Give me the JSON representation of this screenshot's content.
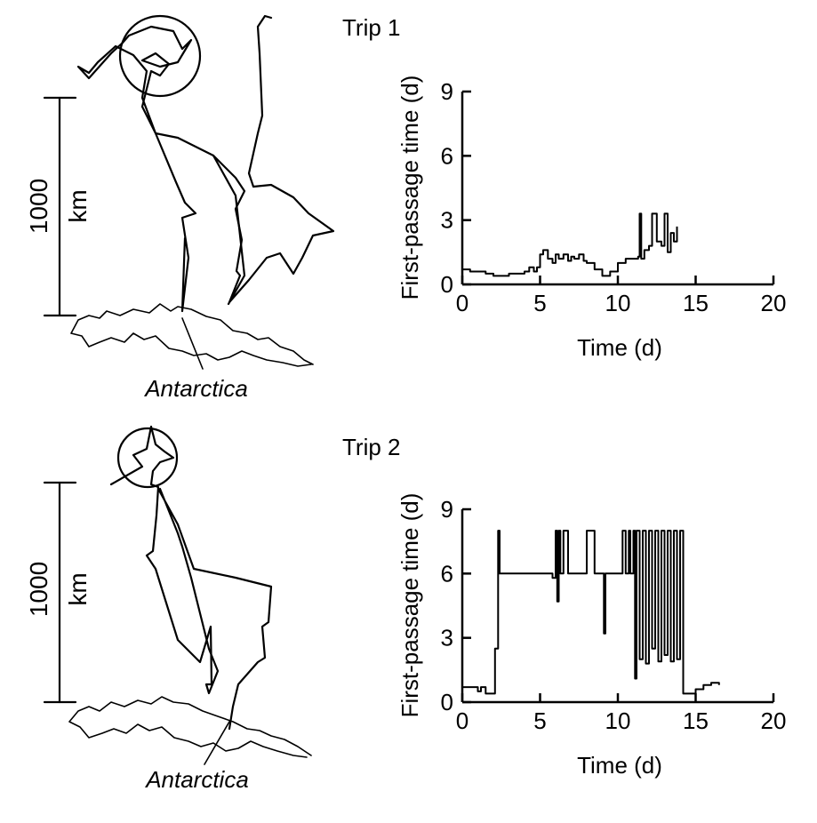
{
  "panels": [
    {
      "trip_title": "Trip 1",
      "scale_value": "1000",
      "scale_unit": "km",
      "map_label": "Antarctica"
    },
    {
      "trip_title": "Trip 2",
      "scale_value": "1000",
      "scale_unit": "km",
      "map_label": "Antarctica"
    }
  ],
  "chart_data": [
    {
      "type": "line",
      "xlabel": "Time (d)",
      "ylabel": "First-passage time (d)",
      "xlim": [
        0,
        20
      ],
      "ylim": [
        0,
        9
      ],
      "xticks": [
        0,
        5,
        10,
        15,
        20
      ],
      "yticks": [
        0,
        3,
        6,
        9
      ],
      "grid": false,
      "series": [
        {
          "x": [
            0,
            0.5,
            1,
            1.5,
            2,
            2.5,
            3,
            3.5,
            4,
            4.3,
            4.6,
            4.8,
            5,
            5.2,
            5.5,
            5.8,
            6,
            6.2,
            6.5,
            6.8,
            7,
            7.2,
            7.5,
            7.8,
            8,
            8.5,
            9,
            9.5,
            10,
            10.5,
            11,
            11.3,
            11.4,
            11.5,
            11.7,
            12,
            12.2,
            12.4,
            12.5,
            12.8,
            13,
            13.2,
            13.4,
            13.6,
            13.8
          ],
          "y": [
            0.7,
            0.6,
            0.6,
            0.5,
            0.4,
            0.4,
            0.5,
            0.5,
            0.6,
            0.8,
            0.6,
            0.8,
            1.4,
            1.6,
            1.2,
            1.0,
            1.4,
            1.2,
            1.4,
            1.1,
            1.3,
            1.2,
            1.4,
            1.1,
            1.0,
            0.7,
            0.4,
            0.6,
            1.0,
            1.2,
            1.2,
            1.3,
            3.3,
            1.2,
            1.6,
            1.8,
            3.3,
            3.3,
            2.0,
            1.8,
            3.3,
            1.5,
            2.4,
            2.0,
            2.7
          ]
        }
      ]
    },
    {
      "type": "line",
      "xlabel": "Time (d)",
      "ylabel": "First-passage time (d)",
      "xlim": [
        0,
        20
      ],
      "ylim": [
        0,
        9
      ],
      "xticks": [
        0,
        5,
        10,
        15,
        20
      ],
      "yticks": [
        0,
        3,
        6,
        9
      ],
      "grid": false,
      "series": [
        {
          "x": [
            0,
            0.5,
            0.8,
            1.0,
            1.2,
            1.5,
            2.0,
            2.1,
            2.2,
            2.3,
            2.4,
            2.5,
            3,
            4,
            5,
            5.5,
            5.8,
            6,
            6.1,
            6.2,
            6.3,
            6.5,
            6.8,
            7,
            7.5,
            8,
            8.5,
            9,
            9.1,
            9.2,
            9.4,
            10,
            10.3,
            10.5,
            10.7,
            10.8,
            11,
            11.1,
            11.2,
            11.4,
            11.6,
            11.8,
            12,
            12.2,
            12.4,
            12.6,
            12.8,
            13,
            13.2,
            13.4,
            13.6,
            13.8,
            14,
            14.2,
            14.4,
            15,
            15.5,
            16,
            16.5
          ],
          "y": [
            0.7,
            0.7,
            0.7,
            0.5,
            0.7,
            0.4,
            0.4,
            2.5,
            2.5,
            8.0,
            6.0,
            6.0,
            6.0,
            6.0,
            6.0,
            6.0,
            5.8,
            8.0,
            4.7,
            8.0,
            6.0,
            8.0,
            6.0,
            6.0,
            6.0,
            8.0,
            6.0,
            6.0,
            3.2,
            6.0,
            6.0,
            6.0,
            8.0,
            6.0,
            8.0,
            6.0,
            8.0,
            1.1,
            8.0,
            2.0,
            8.0,
            1.8,
            8.0,
            2.5,
            8.0,
            1.9,
            8.0,
            2.2,
            8.0,
            1.9,
            8.0,
            2.0,
            8.0,
            0.4,
            0.4,
            0.6,
            0.8,
            0.9,
            0.8
          ]
        }
      ]
    }
  ]
}
